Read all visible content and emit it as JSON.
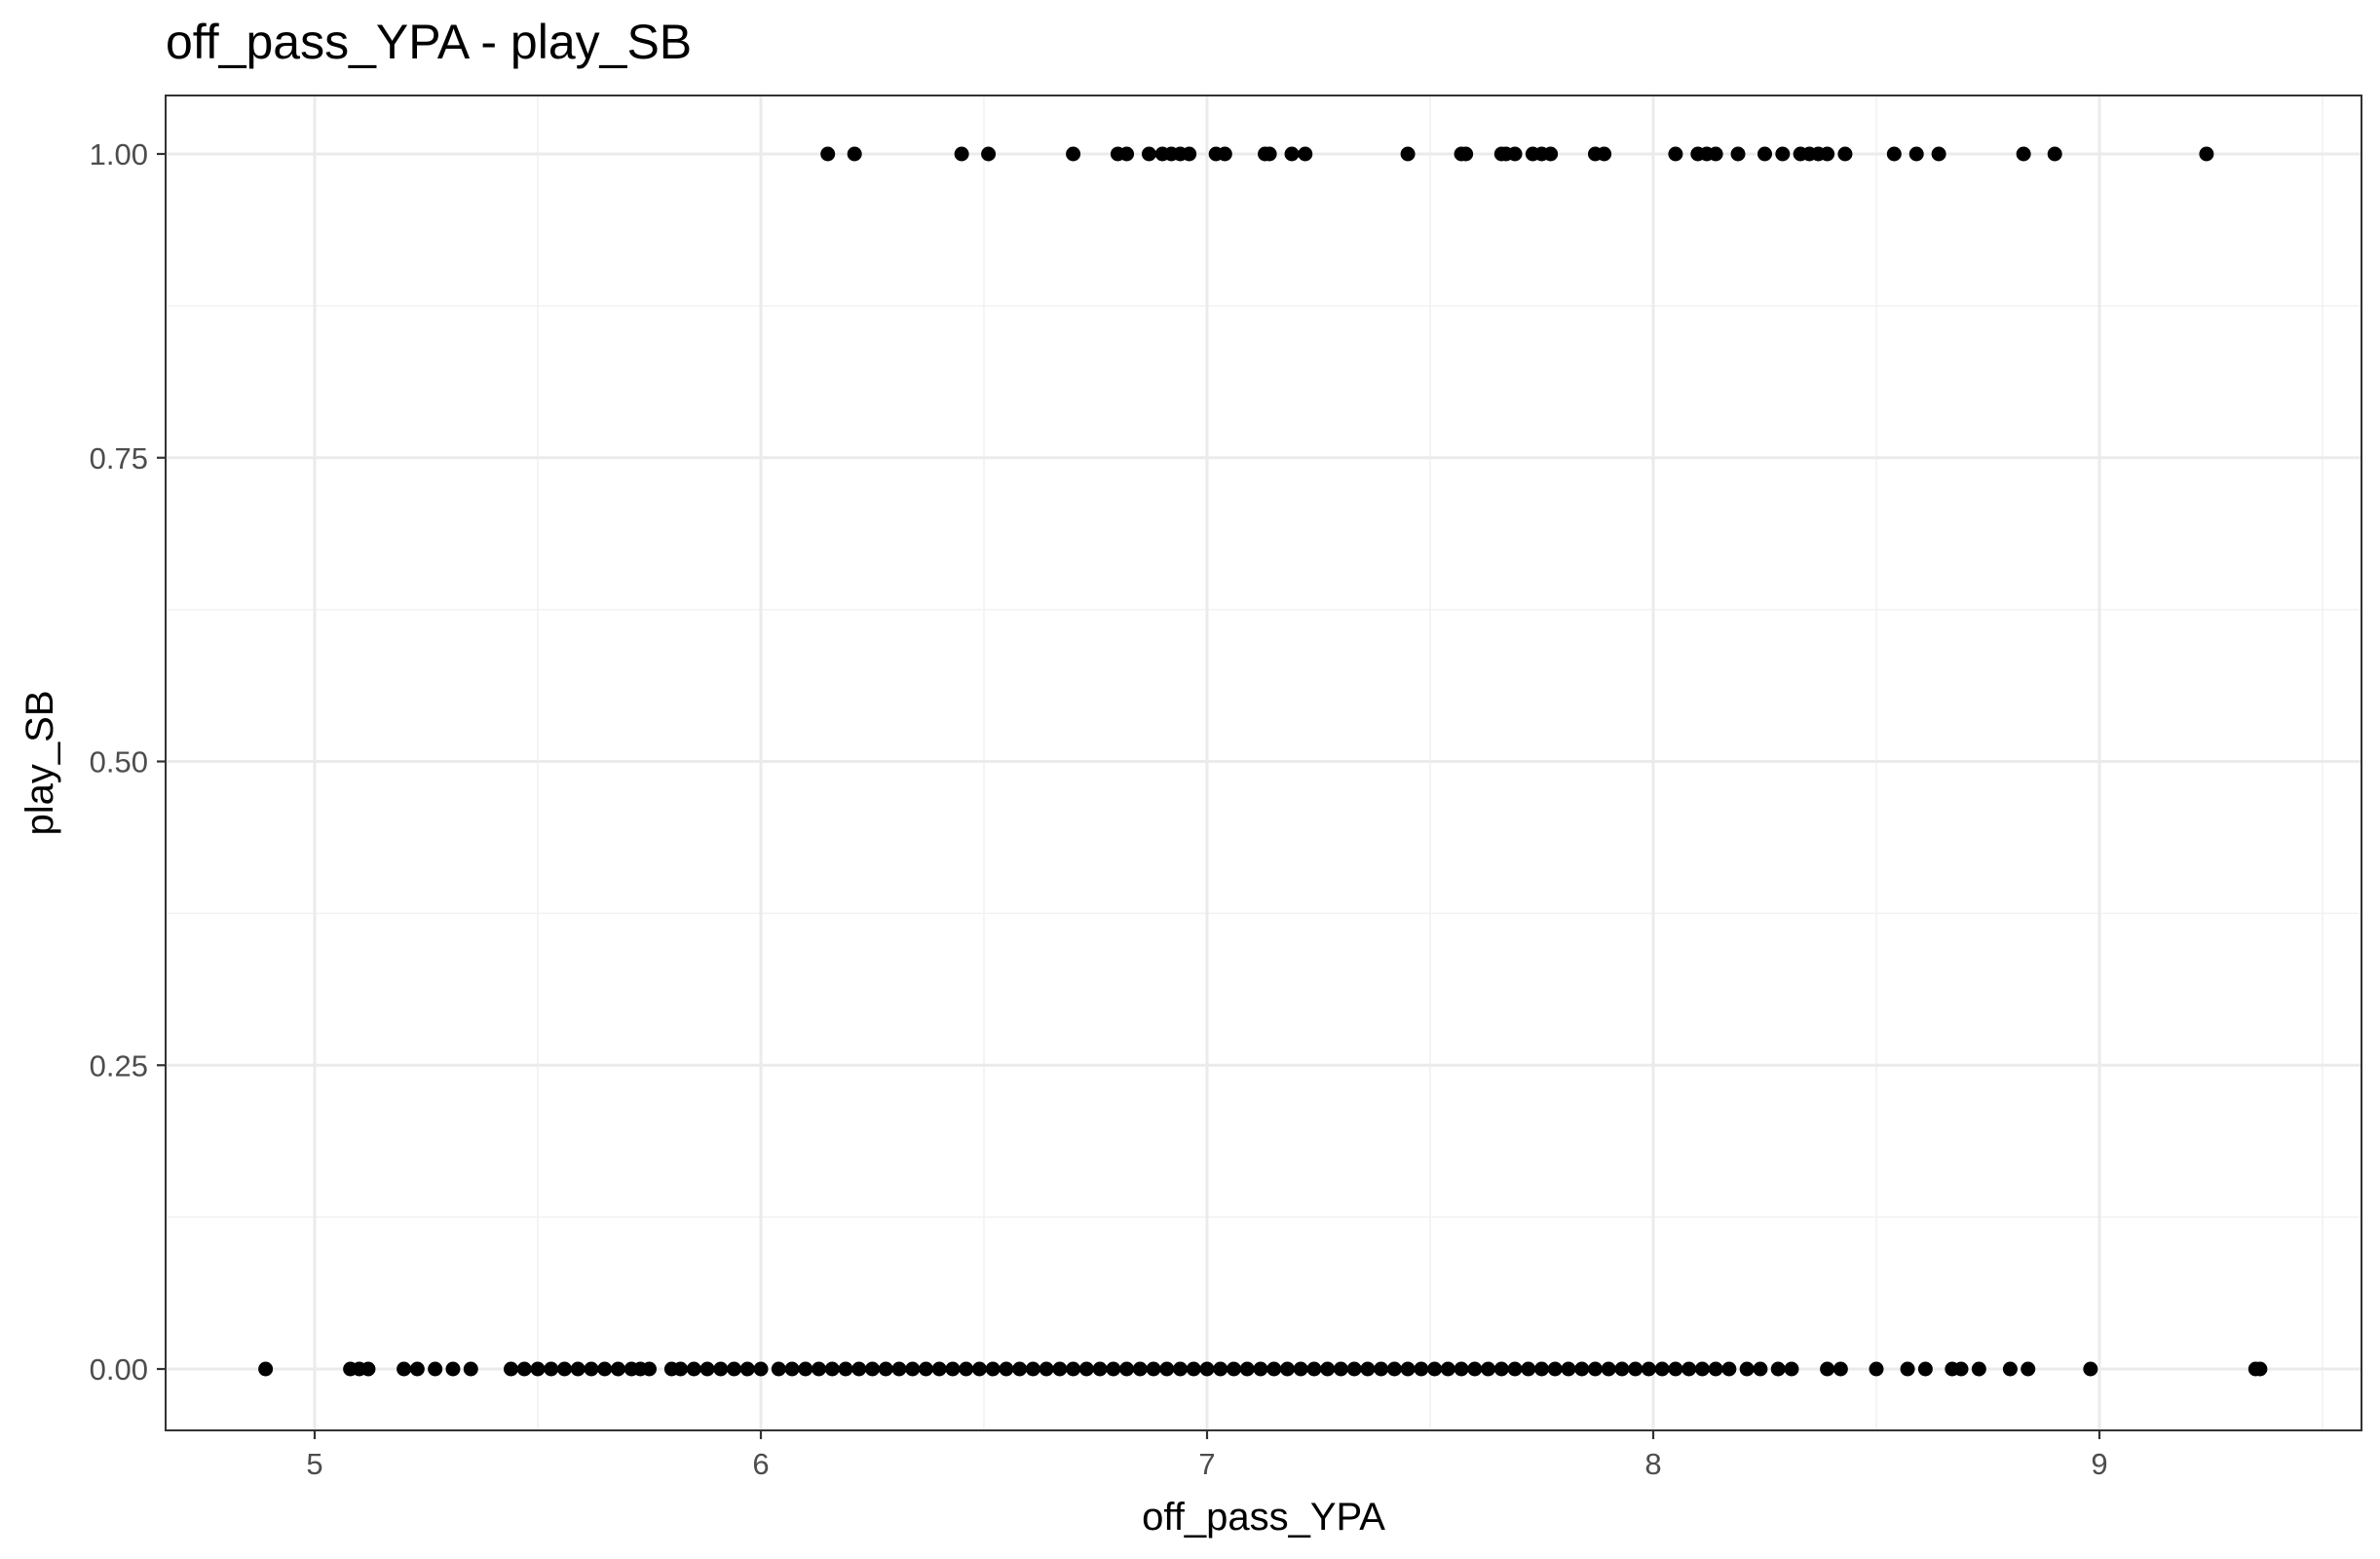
{
  "chart_data": {
    "type": "scatter",
    "title": "off_pass_YPA - play_SB",
    "xlabel": "off_pass_YPA",
    "ylabel": "play_SB",
    "xlim": [
      4.67,
      9.57
    ],
    "ylim": [
      -0.05,
      1.05
    ],
    "x_ticks": [
      5,
      6,
      7,
      8,
      9
    ],
    "x_tick_labels": [
      "5",
      "6",
      "7",
      "8",
      "9"
    ],
    "y_ticks": [
      0,
      0.25,
      0.5,
      0.75,
      1.0
    ],
    "y_tick_labels": [
      "0.00",
      "0.25",
      "0.50",
      "0.75",
      "1.00"
    ],
    "grid": true,
    "legend": "none",
    "point_color": "#000000",
    "series": [
      {
        "values_y": 1,
        "x": [
          6.15,
          6.21,
          6.45,
          6.51,
          6.7,
          6.8,
          6.82,
          6.87,
          6.9,
          6.92,
          6.94,
          6.96,
          7.02,
          7.04,
          7.13,
          7.14,
          7.19,
          7.22,
          7.45,
          7.57,
          7.58,
          7.66,
          7.67,
          7.69,
          7.73,
          7.75,
          7.77,
          7.87,
          7.89,
          8.05,
          8.1,
          8.12,
          8.14,
          8.19,
          8.25,
          8.29,
          8.33,
          8.35,
          8.37,
          8.39,
          8.43,
          8.54,
          8.59,
          8.64,
          8.83,
          8.9,
          9.24
        ]
      },
      {
        "values_y": 0,
        "x": [
          4.89,
          5.08,
          5.1,
          5.12,
          5.2,
          5.23,
          5.27,
          5.31,
          5.35,
          5.44,
          5.47,
          5.5,
          5.53,
          5.56,
          5.59,
          5.62,
          5.65,
          5.68,
          5.71,
          5.73,
          5.75,
          5.8,
          5.82,
          5.85,
          5.88,
          5.91,
          5.94,
          5.97,
          6.0,
          6.04,
          6.07,
          6.1,
          6.13,
          6.16,
          6.19,
          6.22,
          6.25,
          6.28,
          6.31,
          6.34,
          6.37,
          6.4,
          6.43,
          6.46,
          6.49,
          6.52,
          6.55,
          6.58,
          6.61,
          6.64,
          6.67,
          6.7,
          6.73,
          6.76,
          6.79,
          6.82,
          6.85,
          6.88,
          6.91,
          6.94,
          6.97,
          7.0,
          7.03,
          7.06,
          7.09,
          7.12,
          7.15,
          7.18,
          7.21,
          7.24,
          7.27,
          7.3,
          7.33,
          7.36,
          7.39,
          7.42,
          7.45,
          7.48,
          7.51,
          7.54,
          7.57,
          7.6,
          7.63,
          7.66,
          7.69,
          7.72,
          7.75,
          7.78,
          7.81,
          7.84,
          7.87,
          7.9,
          7.93,
          7.96,
          7.99,
          8.02,
          8.05,
          8.08,
          8.11,
          8.14,
          8.17,
          8.21,
          8.24,
          8.28,
          8.31,
          8.39,
          8.42,
          8.5,
          8.57,
          8.61,
          8.67,
          8.69,
          8.73,
          8.8,
          8.84,
          8.98,
          9.35,
          9.36
        ]
      }
    ]
  }
}
